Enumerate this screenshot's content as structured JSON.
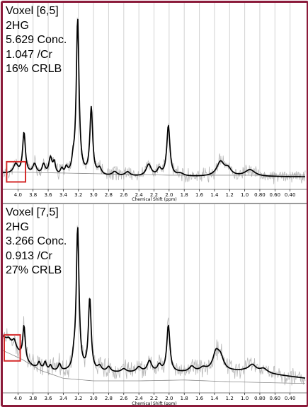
{
  "chart_data": [
    {
      "type": "line",
      "annotation": {
        "voxel": "Voxel [6,5]",
        "metabolite": "2HG",
        "conc": "5.629 Conc.",
        "ratio": "1.047 /Cr",
        "crlb": "16% CRLB"
      },
      "xlabel": "Chemical Shift (ppm)",
      "xlim": [
        4.2,
        0.2
      ],
      "x_reversed": true,
      "ticks": [
        "4.0",
        "3.8",
        "3.6",
        "3.4",
        "3.2",
        "3.0",
        "2.8",
        "2.6",
        "2.4",
        "2.2",
        "2.0",
        "1.8",
        "1.6",
        "1.4",
        "1.2",
        "1.0",
        "0.80",
        "0.60",
        "0.40"
      ],
      "ylim": [
        -0.07,
        1.0
      ],
      "baseline": [
        [
          4.2,
          0.02
        ],
        [
          3.5,
          0.0
        ],
        [
          2.5,
          0.0
        ],
        [
          1.5,
          0.0
        ],
        [
          0.2,
          0.0
        ]
      ],
      "fit_baseline": [
        [
          4.2,
          0.03
        ],
        [
          2.0,
          0.01
        ],
        [
          0.2,
          0.01
        ]
      ],
      "peaks": [
        {
          "c": 4.03,
          "h": 0.055,
          "w": 0.035
        },
        {
          "c": 3.92,
          "h": 0.245,
          "w": 0.022
        },
        {
          "c": 3.78,
          "h": 0.06,
          "w": 0.03
        },
        {
          "c": 3.66,
          "h": 0.06,
          "w": 0.025
        },
        {
          "c": 3.57,
          "h": 0.1,
          "w": 0.025
        },
        {
          "c": 3.52,
          "h": 0.07,
          "w": 0.02
        },
        {
          "c": 3.42,
          "h": 0.035,
          "w": 0.02
        },
        {
          "c": 3.36,
          "h": 0.04,
          "w": 0.02
        },
        {
          "c": 3.27,
          "h": 0.06,
          "w": 0.02
        },
        {
          "c": 3.21,
          "h": 0.93,
          "w": 0.022
        },
        {
          "c": 3.03,
          "h": 0.4,
          "w": 0.022
        },
        {
          "c": 2.92,
          "h": 0.04,
          "w": 0.03
        },
        {
          "c": 2.72,
          "h": 0.025,
          "w": 0.04
        },
        {
          "c": 2.55,
          "h": 0.025,
          "w": 0.04
        },
        {
          "c": 2.27,
          "h": 0.07,
          "w": 0.04
        },
        {
          "c": 2.13,
          "h": 0.04,
          "w": 0.03
        },
        {
          "c": 2.01,
          "h": 0.3,
          "w": 0.025
        },
        {
          "c": 1.85,
          "h": 0.015,
          "w": 0.05
        },
        {
          "c": 1.32,
          "h": 0.085,
          "w": 0.06
        },
        {
          "c": 1.22,
          "h": 0.04,
          "w": 0.05
        },
        {
          "c": 0.93,
          "h": 0.04,
          "w": 0.08
        }
      ],
      "highlight": {
        "x_range": [
          4.15,
          3.9
        ],
        "y_range": [
          -0.03,
          0.09
        ],
        "color": "#d42a2a"
      },
      "noise_amplitude": 0.035
    },
    {
      "type": "line",
      "annotation": {
        "voxel": "Voxel [7,5]",
        "metabolite": "2HG",
        "conc": "3.266 Conc.",
        "ratio": "0.913 /Cr",
        "crlb": "27% CRLB"
      },
      "xlabel": "Chemical Shift (ppm)",
      "xlim": [
        4.2,
        0.2
      ],
      "x_reversed": true,
      "ticks": [
        "4.0",
        "3.8",
        "3.6",
        "3.4",
        "3.2",
        "3.0",
        "2.8",
        "2.6",
        "2.4",
        "2.2",
        "2.0",
        "1.8",
        "1.6",
        "1.4",
        "1.2",
        "1.0",
        "0.80",
        "0.60",
        "0.40"
      ],
      "ylim": [
        -0.1,
        0.95
      ],
      "baseline": [
        [
          4.2,
          0.22
        ],
        [
          4.05,
          0.16
        ],
        [
          3.9,
          0.07
        ],
        [
          3.8,
          0.045
        ],
        [
          3.6,
          0.02
        ],
        [
          3.2,
          0.01
        ],
        [
          2.6,
          0.01
        ],
        [
          2.0,
          0.01
        ],
        [
          1.6,
          0.015
        ],
        [
          1.0,
          0.02
        ],
        [
          0.6,
          0.0
        ],
        [
          0.2,
          -0.02
        ]
      ],
      "fit_baseline": [
        [
          4.2,
          0.14
        ],
        [
          3.95,
          0.09
        ],
        [
          3.7,
          0.025
        ],
        [
          3.4,
          -0.02
        ],
        [
          3.0,
          -0.035
        ],
        [
          2.4,
          -0.035
        ],
        [
          1.8,
          -0.03
        ],
        [
          1.2,
          -0.04
        ],
        [
          0.7,
          -0.045
        ],
        [
          0.2,
          -0.05
        ]
      ],
      "peaks": [
        {
          "c": 4.12,
          "h": 0.02,
          "w": 0.03
        },
        {
          "c": 4.05,
          "h": 0.04,
          "w": 0.025
        },
        {
          "c": 3.92,
          "h": 0.2,
          "w": 0.02
        },
        {
          "c": 3.72,
          "h": 0.035,
          "w": 0.02
        },
        {
          "c": 3.64,
          "h": 0.045,
          "w": 0.02
        },
        {
          "c": 3.57,
          "h": 0.03,
          "w": 0.02
        },
        {
          "c": 3.45,
          "h": 0.04,
          "w": 0.02
        },
        {
          "c": 3.26,
          "h": 0.05,
          "w": 0.02
        },
        {
          "c": 3.21,
          "h": 0.83,
          "w": 0.022
        },
        {
          "c": 3.05,
          "h": 0.42,
          "w": 0.022
        },
        {
          "c": 2.92,
          "h": 0.03,
          "w": 0.03
        },
        {
          "c": 2.8,
          "h": 0.03,
          "w": 0.03
        },
        {
          "c": 2.6,
          "h": 0.02,
          "w": 0.04
        },
        {
          "c": 2.4,
          "h": 0.03,
          "w": 0.04
        },
        {
          "c": 2.26,
          "h": 0.065,
          "w": 0.035
        },
        {
          "c": 2.13,
          "h": 0.04,
          "w": 0.03
        },
        {
          "c": 2.01,
          "h": 0.27,
          "w": 0.025
        },
        {
          "c": 1.7,
          "h": 0.03,
          "w": 0.04
        },
        {
          "c": 1.55,
          "h": 0.02,
          "w": 0.05
        },
        {
          "c": 1.38,
          "h": 0.1,
          "w": 0.05
        },
        {
          "c": 1.32,
          "h": 0.07,
          "w": 0.05
        },
        {
          "c": 0.9,
          "h": 0.04,
          "w": 0.06
        },
        {
          "c": 0.75,
          "h": 0.025,
          "w": 0.06
        }
      ],
      "highlight": {
        "x_range": [
          4.2,
          3.97
        ],
        "y_range": [
          0.08,
          0.23
        ],
        "color": "#d42a2a"
      },
      "noise_amplitude": 0.045
    }
  ]
}
